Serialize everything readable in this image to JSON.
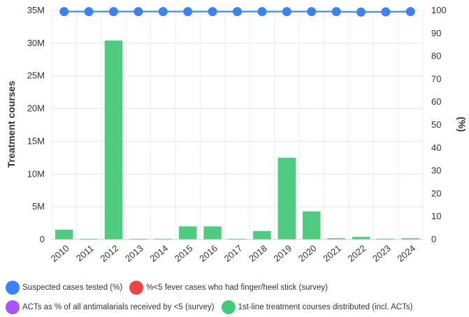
{
  "chart_data": {
    "type": "bar",
    "categories": [
      "2010",
      "2011",
      "2012",
      "2013",
      "2014",
      "2015",
      "2016",
      "2017",
      "2018",
      "2019",
      "2020",
      "2021",
      "2022",
      "2023",
      "2024"
    ],
    "title": "",
    "y_left": {
      "label": "Treatment courses",
      "range": [
        0,
        35000000
      ],
      "ticks": [
        "0",
        "5M",
        "10M",
        "15M",
        "20M",
        "25M",
        "30M",
        "35M"
      ]
    },
    "y_right": {
      "label": "(%)",
      "range": [
        0,
        100
      ],
      "ticks": [
        "0",
        "10",
        "20",
        "30",
        "40",
        "50",
        "60",
        "70",
        "80",
        "90",
        "100"
      ]
    },
    "grid": true,
    "legend_placement": "bottom",
    "series": [
      {
        "name": "Suspected cases tested (%)",
        "type": "line",
        "axis": "right",
        "color": "#3b82f6",
        "values": [
          99.5,
          99.5,
          99.5,
          99.5,
          99.5,
          99.5,
          99.5,
          99.5,
          99.5,
          99.5,
          99.5,
          99.5,
          99.3,
          99.4,
          99.5
        ]
      },
      {
        "name": "%<5 fever cases who had finger/heel stick (survey)",
        "type": "scatter",
        "axis": "right",
        "color": "#ef4444",
        "values": [
          null,
          null,
          null,
          null,
          null,
          null,
          null,
          null,
          null,
          null,
          null,
          null,
          null,
          null,
          null
        ]
      },
      {
        "name": "ACTs as % of all antimalarials received by <5 (survey)",
        "type": "scatter",
        "axis": "right",
        "color": "#a855f7",
        "values": [
          null,
          null,
          null,
          null,
          null,
          null,
          null,
          null,
          null,
          null,
          null,
          null,
          null,
          null,
          null
        ]
      },
      {
        "name": "1st-line treatment courses distributed (incl. ACTs)",
        "type": "bar",
        "axis": "left",
        "color": "#47c97a",
        "values": [
          1500000,
          0,
          30400000,
          30000,
          120000,
          2000000,
          2000000,
          20000,
          1300000,
          12500000,
          4300000,
          200000,
          400000,
          130000,
          200000
        ]
      }
    ]
  }
}
